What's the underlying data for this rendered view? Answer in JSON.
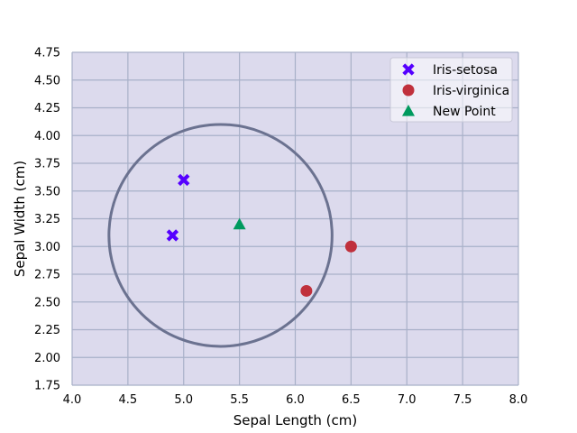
{
  "chart_data": {
    "type": "scatter",
    "xlabel": "Sepal Length (cm)",
    "ylabel": "Sepal Width (cm)",
    "xlim": [
      4.0,
      8.0
    ],
    "ylim": [
      1.75,
      4.75
    ],
    "xticks": [
      "4.0",
      "4.5",
      "5.0",
      "5.5",
      "6.0",
      "6.5",
      "7.0",
      "7.5",
      "8.0"
    ],
    "yticks": [
      "1.75",
      "2.00",
      "2.25",
      "2.50",
      "2.75",
      "3.00",
      "3.25",
      "3.50",
      "3.75",
      "4.00",
      "4.25",
      "4.50",
      "4.75"
    ],
    "grid": true,
    "legend_position": "top-right",
    "series": [
      {
        "name": "Iris-setosa",
        "marker": "x",
        "color": "#5500ff",
        "points": [
          [
            5.0,
            3.6
          ],
          [
            4.9,
            3.1
          ]
        ]
      },
      {
        "name": "Iris-virginica",
        "marker": "circle",
        "color": "#c0303c",
        "points": [
          [
            6.5,
            3.0
          ],
          [
            6.1,
            2.6
          ]
        ]
      },
      {
        "name": "New Point",
        "marker": "triangle",
        "color": "#009a5e",
        "points": [
          [
            5.5,
            3.2
          ]
        ]
      }
    ],
    "circle": {
      "center": [
        5.33,
        3.1
      ],
      "radius": 1.0,
      "color": "#6b7290"
    },
    "colors": {
      "plot_background": "#dcdaed",
      "grid": "#a8b0c8"
    }
  }
}
